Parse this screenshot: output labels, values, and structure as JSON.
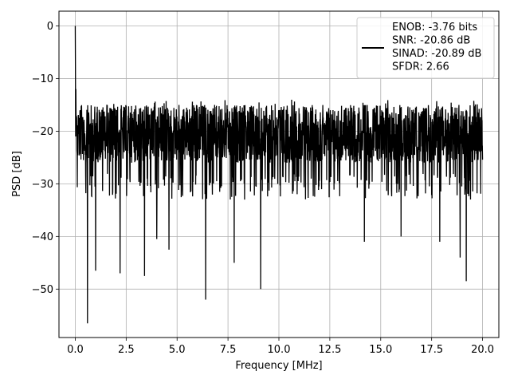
{
  "chart_data": {
    "type": "line",
    "xlabel": "Frequency [MHz]",
    "ylabel": "PSD [dB]",
    "xlim": [
      -0.8,
      20.8
    ],
    "ylim": [
      -59.2,
      2.8
    ],
    "xticks": [
      0.0,
      2.5,
      5.0,
      7.5,
      10.0,
      12.5,
      15.0,
      17.5,
      20.0
    ],
    "xtick_labels": [
      "0.0",
      "2.5",
      "5.0",
      "7.5",
      "10.0",
      "12.5",
      "15.0",
      "17.5",
      "20.0"
    ],
    "yticks": [
      0,
      -10,
      -20,
      -30,
      -40,
      -50
    ],
    "ytick_labels": [
      "0",
      "−10",
      "−20",
      "−30",
      "−40",
      "−50"
    ],
    "grid": true,
    "legend": {
      "placement": "top-right",
      "lines": [
        "ENOB: -3.76 bits",
        "SNR: -20.86 dB",
        "SINAD: -20.89 dB",
        "SFDR: 2.66"
      ]
    },
    "series": [
      {
        "color": "#000000",
        "x_range": [
          0.0,
          20.0
        ],
        "y_band": [
          -33.0,
          -9.0
        ],
        "peak": {
          "x": 0.0,
          "y": 0.0
        },
        "dips": [
          {
            "x": 0.6,
            "y": -56.5
          },
          {
            "x": 1.0,
            "y": -46.5
          },
          {
            "x": 2.2,
            "y": -47.0
          },
          {
            "x": 3.4,
            "y": -47.5
          },
          {
            "x": 4.0,
            "y": -40.5
          },
          {
            "x": 4.6,
            "y": -42.5
          },
          {
            "x": 6.4,
            "y": -52.0
          },
          {
            "x": 7.8,
            "y": -45.0
          },
          {
            "x": 9.1,
            "y": -50.0
          },
          {
            "x": 14.2,
            "y": -41.0
          },
          {
            "x": 16.0,
            "y": -40.0
          },
          {
            "x": 17.9,
            "y": -41.0
          },
          {
            "x": 18.9,
            "y": -44.0
          },
          {
            "x": 19.2,
            "y": -48.5
          }
        ]
      }
    ]
  }
}
